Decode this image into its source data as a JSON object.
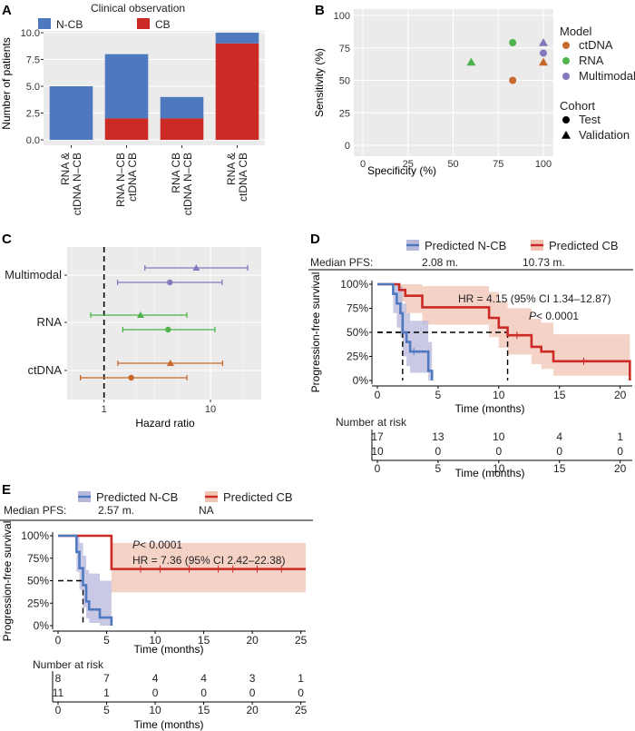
{
  "panels": {
    "A": "A",
    "B": "B",
    "C": "C",
    "D": "D",
    "E": "E"
  },
  "colors": {
    "ncb": "#4e79bf",
    "cb": "#cc2a24",
    "ctdna": "#c8682c",
    "rna": "#4eb34a",
    "multimodal": "#8379bd",
    "panel_bg": "#ebebeb",
    "ncb_band": "#b7b7dc",
    "cb_band": "#f1c3b3"
  },
  "chart_data": [
    {
      "id": "A",
      "type": "bar",
      "title": "",
      "legend_title": "Clinical observation",
      "legend": [
        "N-CB",
        "CB"
      ],
      "categories": [
        "RNA & ctDNA N–CB",
        "RNA N–CB ctDNA CB",
        "RNA CB ctDNA N–CB",
        "RNA & ctDNA CB"
      ],
      "category_lines": [
        [
          "RNA &",
          "ctDNA N–CB"
        ],
        [
          "RNA N–CB",
          "ctDNA CB"
        ],
        [
          "RNA CB",
          "ctDNA N–CB"
        ],
        [
          "RNA &",
          "ctDNA CB"
        ]
      ],
      "series": [
        {
          "name": "CB",
          "values": [
            0,
            2,
            2,
            9
          ]
        },
        {
          "name": "N-CB",
          "values": [
            5,
            6,
            2,
            1
          ]
        }
      ],
      "ylabel": "Number of patients",
      "ylim": [
        0,
        10
      ],
      "yticks": [
        "0.0",
        "2.5",
        "5.0",
        "7.5",
        "10.0"
      ]
    },
    {
      "id": "B",
      "type": "scatter",
      "xlabel": "Specificity (%)",
      "ylabel": "Sensitivity (%)",
      "xlim": [
        0,
        100
      ],
      "ylim": [
        0,
        100
      ],
      "xticks": [
        "0",
        "25",
        "50",
        "75",
        "100"
      ],
      "yticks": [
        "0",
        "25",
        "50",
        "75",
        "100"
      ],
      "legend_model_title": "Model",
      "legend_models": [
        "ctDNA",
        "RNA",
        "Multimodal"
      ],
      "legend_cohort_title": "Cohort",
      "legend_cohorts": [
        "Test",
        "Validation"
      ],
      "points": [
        {
          "model": "ctDNA",
          "cohort": "Test",
          "specificity": 83,
          "sensitivity": 50
        },
        {
          "model": "ctDNA",
          "cohort": "Validation",
          "specificity": 100,
          "sensitivity": 64
        },
        {
          "model": "RNA",
          "cohort": "Test",
          "specificity": 83,
          "sensitivity": 79
        },
        {
          "model": "RNA",
          "cohort": "Validation",
          "specificity": 60,
          "sensitivity": 64
        },
        {
          "model": "Multimodal",
          "cohort": "Test",
          "specificity": 100,
          "sensitivity": 71
        },
        {
          "model": "Multimodal",
          "cohort": "Validation",
          "specificity": 100,
          "sensitivity": 79
        }
      ]
    },
    {
      "id": "C",
      "type": "scatter",
      "xlabel": "Hazard ratio",
      "xscale": "log",
      "xlim": [
        0.45,
        30
      ],
      "xticks": [
        "1",
        "10"
      ],
      "reference_line": 1,
      "rows": [
        "Multimodal",
        "RNA",
        "ctDNA"
      ],
      "estimates": [
        {
          "model": "Multimodal",
          "cohort": "Validation",
          "hr": 7.36,
          "lo": 2.42,
          "hi": 22.38
        },
        {
          "model": "Multimodal",
          "cohort": "Test",
          "hr": 4.15,
          "lo": 1.34,
          "hi": 12.87
        },
        {
          "model": "RNA",
          "cohort": "Validation",
          "hr": 2.2,
          "lo": 0.75,
          "hi": 6.0
        },
        {
          "model": "RNA",
          "cohort": "Test",
          "hr": 4.0,
          "lo": 1.5,
          "hi": 11.0
        },
        {
          "model": "ctDNA",
          "cohort": "Validation",
          "hr": 4.2,
          "lo": 1.35,
          "hi": 13.0
        },
        {
          "model": "ctDNA",
          "cohort": "Test",
          "hr": 1.8,
          "lo": 0.6,
          "hi": 6.0
        }
      ]
    },
    {
      "id": "D",
      "type": "line",
      "legend": [
        "Predicted N-CB",
        "Predicted CB"
      ],
      "median_pfs_label": "Median PFS:",
      "median_pfs": [
        "2.08 m.",
        "10.73 m."
      ],
      "median_lines": [
        2.08,
        10.73
      ],
      "hr_text": "HR = 4.15 (95% CI 1.34–12.87)",
      "p_label": "P",
      "p_value": " < 0.0001",
      "ylabel": "Progression-free survival",
      "xlabel": "Time (months)",
      "xlim": [
        0,
        21
      ],
      "ylim": [
        0,
        1
      ],
      "xticks": [
        "0",
        "5",
        "10",
        "15",
        "20"
      ],
      "yticks": [
        "0%",
        "25%",
        "50%",
        "75%",
        "100%"
      ],
      "series": [
        {
          "name": "Predicted N-CB",
          "x": [
            0,
            1.0,
            1.3,
            1.6,
            1.9,
            2.08,
            2.4,
            2.7,
            3.0,
            3.3,
            3.6,
            4.2,
            4.5
          ],
          "y": [
            1,
            1,
            0.9,
            0.8,
            0.7,
            0.5,
            0.4,
            0.3,
            0.3,
            0.3,
            0.3,
            0.1,
            0.0
          ],
          "lower": [
            1,
            1,
            0.7,
            0.55,
            0.45,
            0.25,
            0.15,
            0.08,
            0.08,
            0.08,
            0.08,
            0,
            0
          ],
          "upper": [
            1,
            1,
            1,
            1,
            0.98,
            0.8,
            0.7,
            0.62,
            0.62,
            0.62,
            0.62,
            0.4,
            0.4
          ]
        },
        {
          "name": "Predicted CB",
          "x": [
            0,
            1.4,
            1.8,
            2.3,
            3.7,
            8.5,
            9.2,
            10.0,
            10.73,
            11.5,
            12.7,
            13.5,
            14.5,
            15.5,
            20.8
          ],
          "y": [
            1,
            1,
            0.94,
            0.88,
            0.76,
            0.76,
            0.65,
            0.55,
            0.47,
            0.47,
            0.35,
            0.3,
            0.2,
            0.2,
            0.0
          ],
          "lower": [
            1,
            1,
            0.82,
            0.7,
            0.58,
            0.58,
            0.45,
            0.34,
            0.27,
            0.27,
            0.17,
            0.12,
            0.05,
            0.05,
            0.05
          ],
          "upper": [
            1,
            1,
            1,
            1,
            0.98,
            0.98,
            0.92,
            0.82,
            0.75,
            0.75,
            0.64,
            0.6,
            0.48,
            0.48,
            0.48
          ]
        }
      ],
      "censor": {
        "Predicted CB": [
          [
            11.5,
            0.47
          ],
          [
            17.0,
            0.2
          ]
        ],
        "Predicted N-CB": [
          [
            3.0,
            0.3
          ]
        ]
      },
      "risk_title": "Number at risk",
      "risk_xlabel": "Time (months)",
      "risk_ncb": [
        "10",
        "0",
        "0",
        "0",
        "0"
      ],
      "risk_cb": [
        "17",
        "13",
        "10",
        "4",
        "1"
      ]
    },
    {
      "id": "E",
      "type": "line",
      "legend": [
        "Predicted N-CB",
        "Predicted CB"
      ],
      "median_pfs_label": "Median PFS:",
      "median_pfs": [
        "2.57 m.",
        "NA"
      ],
      "median_lines": [
        2.57
      ],
      "hr_text": "HR = 7.36 (95% CI 2.42–22.38)",
      "p_label": "P",
      "p_value": " < 0.0001",
      "ylabel": "Progression-free survival",
      "xlabel": "Time (months)",
      "xlim": [
        0,
        25.5
      ],
      "ylim": [
        0,
        1
      ],
      "xticks": [
        "0",
        "5",
        "10",
        "15",
        "20",
        "25"
      ],
      "yticks": [
        "0%",
        "25%",
        "50%",
        "75%",
        "100%"
      ],
      "series": [
        {
          "name": "Predicted N-CB",
          "x": [
            0,
            1.5,
            1.9,
            2.2,
            2.57,
            2.9,
            3.2,
            4.3,
            5.5
          ],
          "y": [
            1,
            1,
            0.82,
            0.64,
            0.45,
            0.27,
            0.18,
            0.09,
            0.0
          ],
          "lower": [
            1,
            1,
            0.6,
            0.4,
            0.2,
            0.08,
            0.03,
            0,
            0
          ],
          "upper": [
            1,
            1,
            1,
            0.92,
            0.78,
            0.62,
            0.58,
            0.5,
            0.5
          ]
        },
        {
          "name": "Predicted CB",
          "x": [
            0,
            4.3,
            5.5,
            25.5
          ],
          "y": [
            1,
            1,
            0.63,
            0.63
          ],
          "lower": [
            1,
            1,
            0.37,
            0.37
          ],
          "upper": [
            1,
            1,
            0.92,
            0.92
          ]
        }
      ],
      "censor": {
        "Predicted CB": [
          [
            8.5,
            0.63
          ],
          [
            10.5,
            0.63
          ],
          [
            13.5,
            0.63
          ],
          [
            16.5,
            0.63
          ],
          [
            18.0,
            0.63
          ],
          [
            20.5,
            0.63
          ],
          [
            23.0,
            0.63
          ]
        ],
        "Predicted N-CB": []
      },
      "risk_title": "Number at risk",
      "risk_xlabel": "Time (months)",
      "risk_ncb": [
        "11",
        "1",
        "0",
        "0",
        "0",
        "0"
      ],
      "risk_cb": [
        "8",
        "7",
        "4",
        "4",
        "3",
        "1"
      ]
    }
  ]
}
